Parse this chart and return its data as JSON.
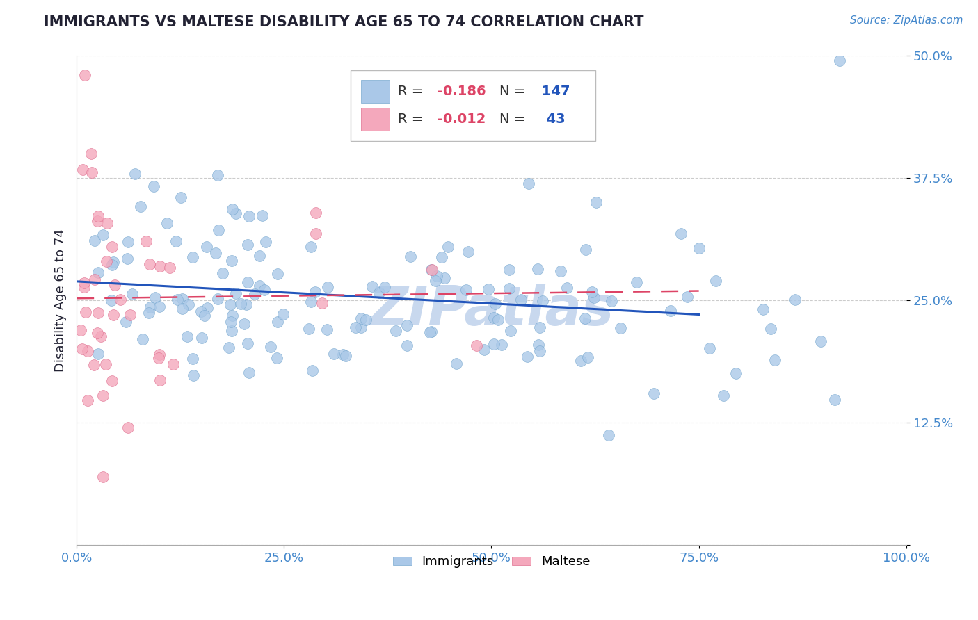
{
  "title": "IMMIGRANTS VS MALTESE DISABILITY AGE 65 TO 74 CORRELATION CHART",
  "ylabel": "Disability Age 65 to 74",
  "source_text": "Source: ZipAtlas.com",
  "xlim": [
    0,
    1.0
  ],
  "ylim": [
    0,
    0.5
  ],
  "ytick_labels": [
    "",
    "12.5%",
    "25.0%",
    "37.5%",
    "50.0%"
  ],
  "xtick_labels": [
    "0.0%",
    "25.0%",
    "50.0%",
    "75.0%",
    "100.0%"
  ],
  "immigrants_R": -0.186,
  "immigrants_N": 147,
  "maltese_R": -0.012,
  "maltese_N": 43,
  "immigrants_color": "#aac8e8",
  "maltese_color": "#f4a8bc",
  "immigrants_edge_color": "#7aaad0",
  "maltese_edge_color": "#e07090",
  "immigrants_line_color": "#2255bb",
  "maltese_line_color": "#dd4466",
  "tick_color": "#4488cc",
  "title_color": "#222233",
  "background_color": "#ffffff",
  "grid_color": "#cccccc",
  "watermark_color": "#c8d8ee",
  "legend_R_color": "#dd4466",
  "legend_N_color": "#2255bb"
}
